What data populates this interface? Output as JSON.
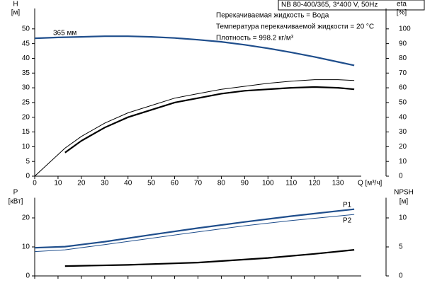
{
  "chart_data": [
    {
      "type": "line",
      "annotations": [
        "NB 80-400/365, 3*400 V, 50Hz",
        "Перекачиваемая жидкость = Вода",
        "Температура перекачиваемой жидкости = 20 °C",
        "Плотность = 998.2 кг/м³"
      ],
      "x_label": "Q [м³/ч]",
      "y_label": [
        "H",
        "[м]"
      ],
      "y2_label": [
        "eta",
        "[%]"
      ],
      "xlim": [
        0,
        140
      ],
      "xticks": [
        0,
        10,
        20,
        30,
        40,
        50,
        60,
        70,
        80,
        90,
        100,
        110,
        120,
        130
      ],
      "ylim": [
        0,
        55
      ],
      "yticks": [
        0,
        5,
        10,
        15,
        20,
        25,
        30,
        35,
        40,
        45,
        50
      ],
      "y2lim": [
        0,
        110
      ],
      "y2ticks": [
        0,
        10,
        20,
        30,
        40,
        50,
        60,
        70,
        80,
        90,
        100
      ],
      "series": [
        {
          "name": "365 мм",
          "color": "#1f4e8c",
          "linewidth": 2.2,
          "x": [
            0,
            10,
            20,
            30,
            40,
            50,
            60,
            70,
            80,
            90,
            100,
            110,
            120,
            130,
            137
          ],
          "values": [
            46.8,
            47.1,
            47.3,
            47.5,
            47.5,
            47.3,
            46.9,
            46.3,
            45.6,
            44.6,
            43.4,
            42.0,
            40.5,
            38.8,
            37.6
          ]
        },
        {
          "color": "#000000",
          "linewidth": 1,
          "axis": "y2",
          "x": [
            0,
            13,
            20,
            30,
            40,
            50,
            60,
            70,
            80,
            90,
            100,
            110,
            120,
            130,
            137
          ],
          "values": [
            0,
            19,
            27,
            36,
            43,
            48,
            53,
            56,
            59,
            61,
            63,
            64.5,
            65.5,
            65.5,
            65
          ]
        },
        {
          "color": "#000000",
          "linewidth": 2.2,
          "axis": "y2",
          "x": [
            13,
            20,
            30,
            40,
            50,
            60,
            70,
            80,
            90,
            100,
            110,
            120,
            130,
            137
          ],
          "values": [
            16,
            24,
            33,
            40,
            45,
            50,
            53,
            56,
            58,
            59,
            60,
            60.5,
            60,
            59
          ]
        }
      ]
    },
    {
      "type": "line",
      "y_label": [
        "P",
        "[кВт]"
      ],
      "y2_label": [
        "NPSH",
        "[м]"
      ],
      "xlim": [
        0,
        140
      ],
      "xticks": [
        0,
        10,
        20,
        30,
        40,
        50,
        60,
        70,
        80,
        90,
        100,
        110,
        120,
        130
      ],
      "xtick_labels": false,
      "ylim": [
        0,
        25
      ],
      "yticks": [
        0,
        10,
        20
      ],
      "y2lim": [
        0,
        12.5
      ],
      "y2ticks": [
        0,
        5,
        10
      ],
      "series": [
        {
          "name": "P1",
          "color": "#1f4e8c",
          "linewidth": 2.2,
          "x": [
            0,
            13,
            30,
            50,
            70,
            90,
            110,
            130,
            137
          ],
          "values": [
            9.7,
            10.1,
            11.8,
            14.2,
            16.5,
            18.6,
            20.6,
            22.4,
            23.0
          ]
        },
        {
          "name": "P2",
          "color": "#1f4e8c",
          "linewidth": 1,
          "x": [
            0,
            13,
            30,
            50,
            70,
            90,
            110,
            137
          ],
          "values": [
            8.4,
            9.0,
            10.8,
            13.0,
            15.2,
            17.3,
            19.1,
            21.2
          ]
        },
        {
          "color": "#000000",
          "linewidth": 2.2,
          "axis": "y2",
          "x": [
            13,
            40,
            70,
            100,
            120,
            137
          ],
          "values": [
            1.7,
            1.9,
            2.3,
            3.1,
            3.8,
            4.5
          ]
        }
      ]
    }
  ]
}
